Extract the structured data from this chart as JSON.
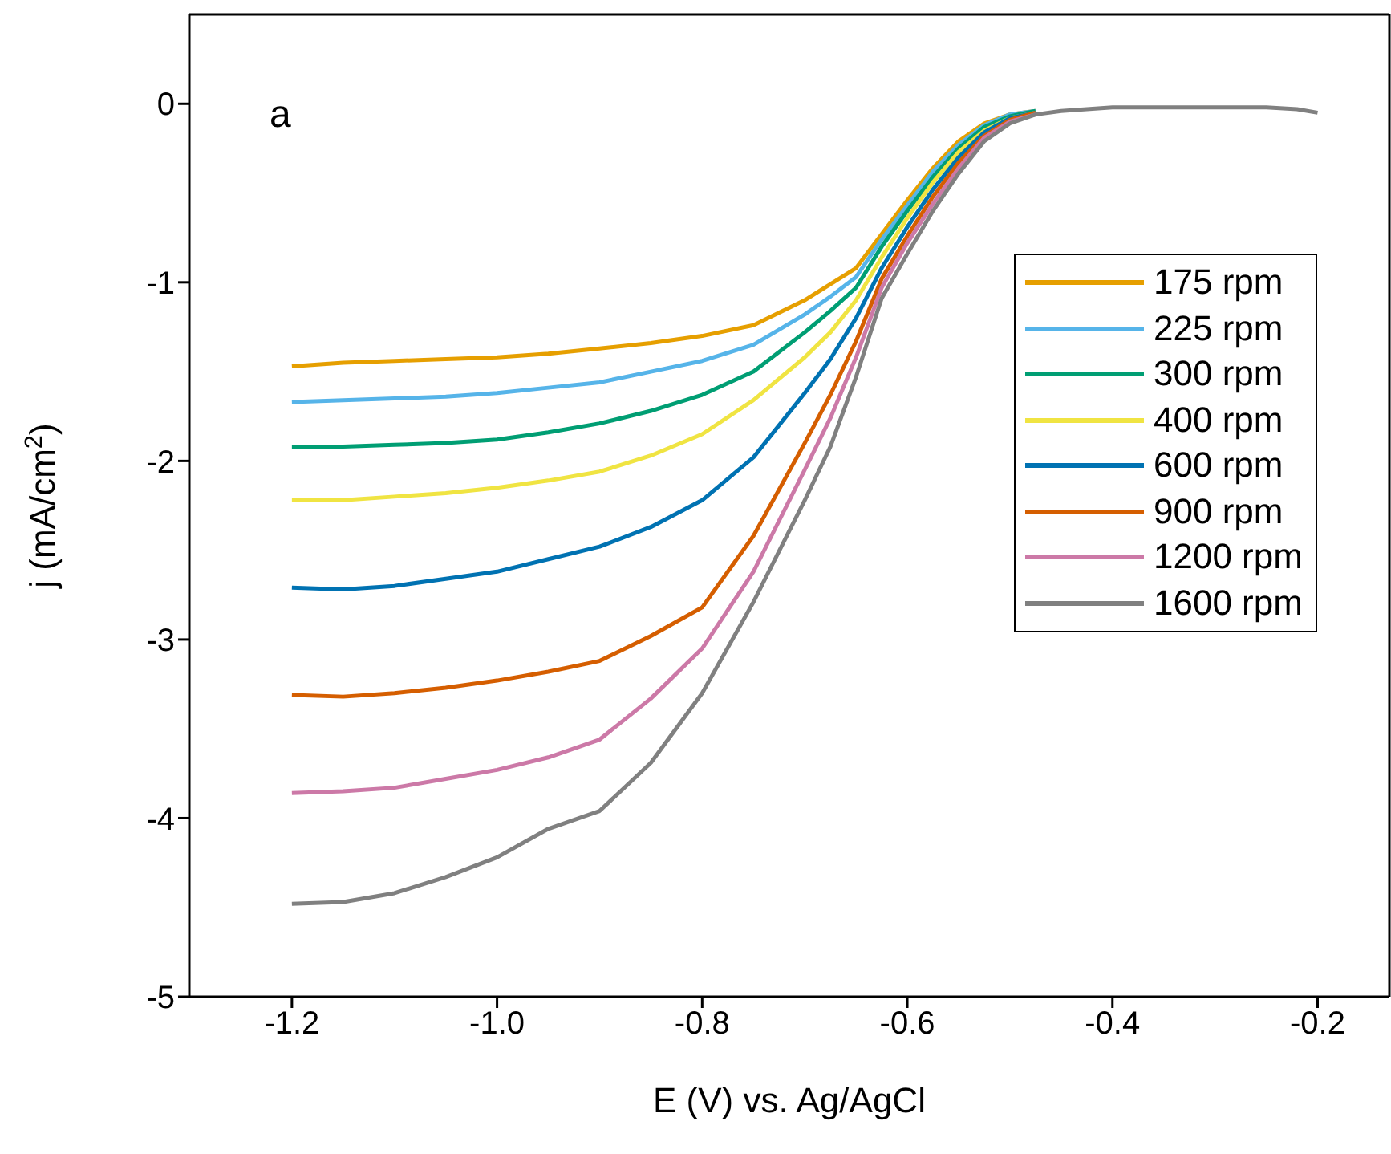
{
  "chart_data": {
    "type": "line",
    "xlabel": "E (V) vs. Ag/AgCl",
    "ylabel": "j (mA/cm$^{2}$)",
    "annotations": [
      "a"
    ],
    "x": [
      -1.2,
      -1.15,
      -1.1,
      -1.05,
      -1.0,
      -0.95,
      -0.9,
      -0.85,
      -0.8,
      -0.75,
      -0.7,
      -0.675,
      -0.65,
      -0.625,
      -0.6,
      -0.575,
      -0.55,
      -0.525,
      -0.5,
      -0.475,
      -0.45,
      -0.4,
      -0.35,
      -0.3,
      -0.25,
      -0.22,
      -0.2
    ],
    "series": [
      {
        "name": "175 rpm",
        "color": "#e69f00",
        "values": [
          -1.47,
          -1.45,
          -1.44,
          -1.43,
          -1.42,
          -1.4,
          -1.37,
          -1.34,
          -1.3,
          -1.24,
          -1.1,
          -1.01,
          -0.92,
          -0.73,
          -0.54,
          -0.36,
          -0.21,
          -0.11,
          -0.06,
          -0.04,
          null,
          null,
          null,
          null,
          null,
          null,
          null
        ]
      },
      {
        "name": "225 rpm",
        "color": "#56b4e9",
        "values": [
          -1.67,
          -1.66,
          -1.65,
          -1.64,
          -1.62,
          -1.59,
          -1.56,
          -1.5,
          -1.44,
          -1.35,
          -1.18,
          -1.08,
          -0.97,
          -0.76,
          -0.57,
          -0.38,
          -0.23,
          -0.12,
          -0.06,
          -0.04,
          null,
          null,
          null,
          null,
          null,
          null,
          null
        ]
      },
      {
        "name": "300 rpm",
        "color": "#009e73",
        "values": [
          -1.92,
          -1.92,
          -1.91,
          -1.9,
          -1.88,
          -1.84,
          -1.79,
          -1.72,
          -1.63,
          -1.5,
          -1.28,
          -1.16,
          -1.03,
          -0.8,
          -0.6,
          -0.41,
          -0.25,
          -0.13,
          -0.07,
          -0.04,
          null,
          null,
          null,
          null,
          null,
          null,
          null
        ]
      },
      {
        "name": "400 rpm",
        "color": "#f0e442",
        "values": [
          -2.22,
          -2.22,
          -2.2,
          -2.18,
          -2.15,
          -2.11,
          -2.06,
          -1.97,
          -1.85,
          -1.66,
          -1.42,
          -1.28,
          -1.1,
          -0.86,
          -0.64,
          -0.44,
          -0.27,
          -0.15,
          -0.08,
          -0.05,
          null,
          null,
          null,
          null,
          null,
          null,
          null
        ]
      },
      {
        "name": "600 rpm",
        "color": "#0072b2",
        "values": [
          -2.71,
          -2.72,
          -2.7,
          -2.66,
          -2.62,
          -2.55,
          -2.48,
          -2.37,
          -2.22,
          -1.98,
          -1.62,
          -1.43,
          -1.2,
          -0.92,
          -0.69,
          -0.48,
          -0.3,
          -0.16,
          -0.08,
          -0.05,
          null,
          null,
          null,
          null,
          null,
          null,
          null
        ]
      },
      {
        "name": "900 rpm",
        "color": "#d55e00",
        "values": [
          -3.31,
          -3.32,
          -3.3,
          -3.27,
          -3.23,
          -3.18,
          -3.12,
          -2.98,
          -2.82,
          -2.42,
          -1.9,
          -1.63,
          -1.33,
          -0.98,
          -0.74,
          -0.52,
          -0.33,
          -0.18,
          -0.09,
          -0.05,
          null,
          null,
          null,
          null,
          null,
          null,
          null
        ]
      },
      {
        "name": "1200 rpm",
        "color": "#cc79a7",
        "values": [
          -3.86,
          -3.85,
          -3.83,
          -3.78,
          -3.73,
          -3.66,
          -3.56,
          -3.33,
          -3.05,
          -2.62,
          -2.05,
          -1.76,
          -1.42,
          -1.03,
          -0.78,
          -0.56,
          -0.36,
          -0.19,
          -0.1,
          -0.06,
          null,
          null,
          null,
          null,
          null,
          null,
          null
        ]
      },
      {
        "name": "1600 rpm",
        "color": "#808080",
        "values": [
          -4.48,
          -4.47,
          -4.42,
          -4.33,
          -4.22,
          -4.06,
          -3.96,
          -3.69,
          -3.3,
          -2.79,
          -2.22,
          -1.92,
          -1.53,
          -1.09,
          -0.84,
          -0.6,
          -0.39,
          -0.21,
          -0.11,
          -0.06,
          -0.04,
          -0.02,
          -0.02,
          -0.02,
          -0.02,
          -0.03,
          -0.05
        ]
      }
    ],
    "xlim": [
      -1.3,
      -0.13
    ],
    "xticks": [
      -1.2,
      {
        "value": -1.0,
        "label": "-1.0"
      },
      -0.8,
      -0.6,
      -0.4,
      -0.2
    ],
    "ylim": [
      -5,
      0.5
    ],
    "yticks": [
      -5,
      -4,
      -3,
      -2,
      -1,
      0
    ],
    "legend": "right",
    "grid": false,
    "marker": "none",
    "line_style": "solid"
  }
}
